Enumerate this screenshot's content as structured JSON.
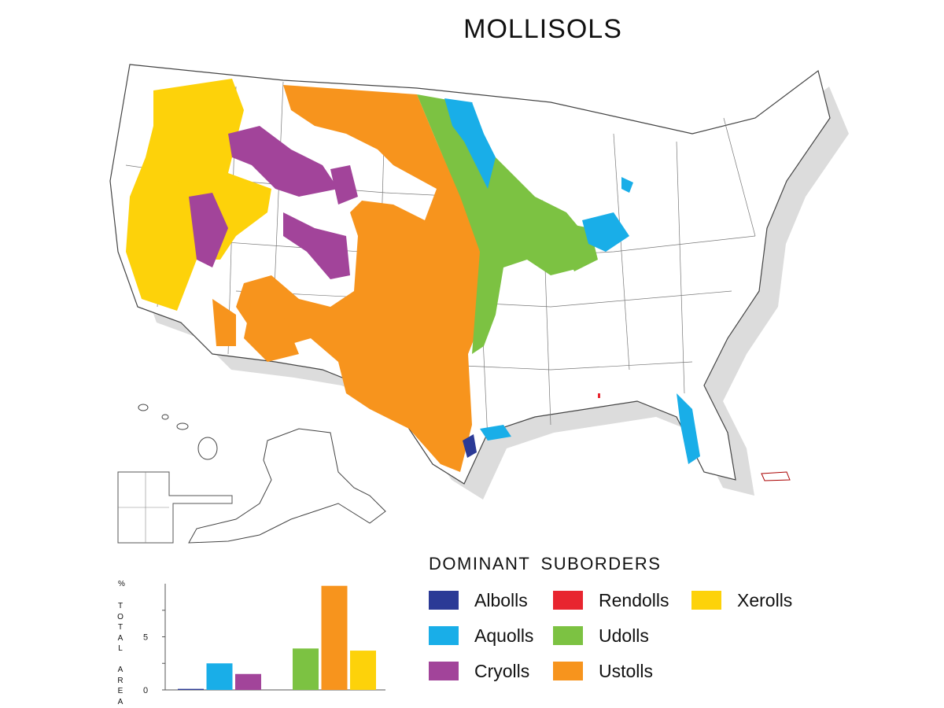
{
  "title": "MOLLISOLS",
  "legend": {
    "title": "DOMINANT SUBORDERS",
    "items": [
      {
        "label": "Albolls",
        "color": "#2b3a96"
      },
      {
        "label": "Aquolls",
        "color": "#19aee8"
      },
      {
        "label": "Cryolls",
        "color": "#a2449a"
      },
      {
        "label": "Rendolls",
        "color": "#e8252f"
      },
      {
        "label": "Udolls",
        "color": "#7cc242"
      },
      {
        "label": "Ustolls",
        "color": "#f7941d"
      },
      {
        "label": "Xerolls",
        "color": "#fdd20a"
      }
    ]
  },
  "chart_data": {
    "type": "bar",
    "categories": [
      "Albolls",
      "Aquolls",
      "Cryolls",
      "Rendolls",
      "Udolls",
      "Ustolls",
      "Xerolls"
    ],
    "values": [
      0.1,
      2.5,
      1.5,
      0,
      3.9,
      9.8,
      3.7
    ],
    "colors": [
      "#2b3a96",
      "#19aee8",
      "#a2449a",
      "#e8252f",
      "#7cc242",
      "#f7941d",
      "#fdd20a"
    ],
    "ylim": [
      0,
      10
    ],
    "yticks": [
      "0",
      "5"
    ],
    "ylabel_unit": "%",
    "ylabel": "TOTAL AREA"
  }
}
